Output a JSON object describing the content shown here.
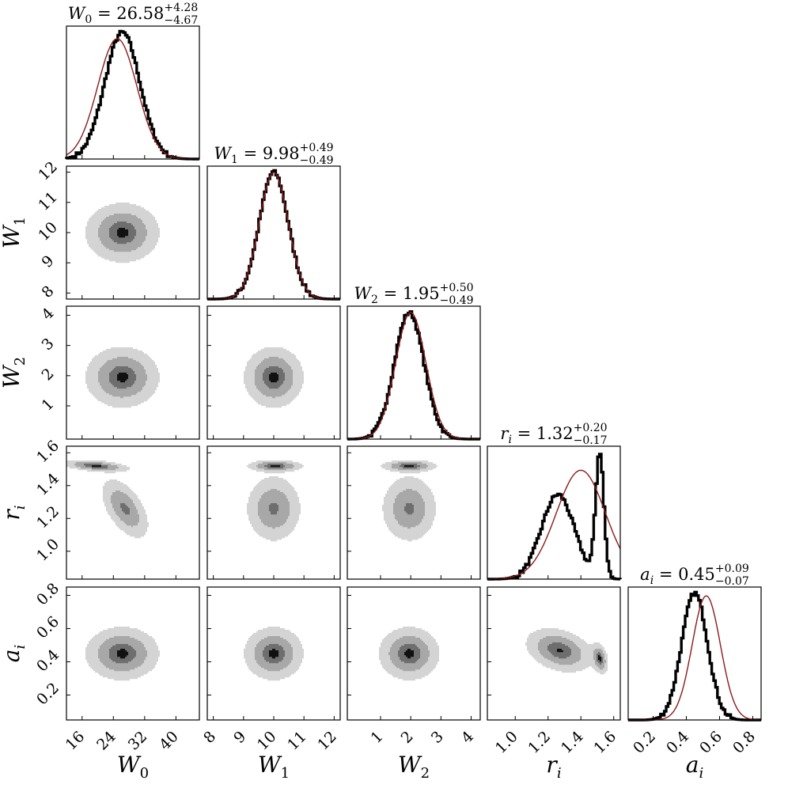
{
  "chart_data": {
    "type": "corner",
    "parameters": [
      {
        "symbol": "W",
        "sub": "0",
        "median": "26.58",
        "plus": "+4.28",
        "minus": "−4.67",
        "range": [
          12,
          46
        ],
        "ticks": [
          "16",
          "24",
          "32",
          "40"
        ]
      },
      {
        "symbol": "W",
        "sub": "1",
        "median": "9.98",
        "plus": "+0.49",
        "minus": "−0.49",
        "range": [
          7.8,
          12.2
        ],
        "ticks": [
          "8",
          "9",
          "10",
          "11",
          "12"
        ]
      },
      {
        "symbol": "W",
        "sub": "2",
        "median": "1.95",
        "plus": "+0.50",
        "minus": "−0.49",
        "range": [
          -0.1,
          4.3
        ],
        "ticks": [
          "1",
          "2",
          "3",
          "4"
        ]
      },
      {
        "symbol": "r",
        "sub": "i",
        "median": "1.32",
        "plus": "+0.20",
        "minus": "−0.17",
        "range": [
          0.83,
          1.64
        ],
        "ticks": [
          "1.0",
          "1.2",
          "1.4",
          "1.6"
        ]
      },
      {
        "symbol": "a",
        "sub": "i",
        "median": "0.45",
        "plus": "+0.09",
        "minus": "−0.07",
        "range": [
          0.05,
          0.85
        ],
        "ticks": [
          "0.2",
          "0.4",
          "0.6",
          "0.8"
        ]
      }
    ],
    "title_separator": " = ",
    "diagonal": [
      {
        "posterior": {
          "type": "gaussian",
          "mean": 26.3,
          "sd": 4.5
        },
        "prior": {
          "type": "gaussian",
          "mean": 25.0,
          "sd": 5.0,
          "rel_height": 0.95
        }
      },
      {
        "posterior": {
          "type": "gaussian",
          "mean": 10.0,
          "sd": 0.48
        },
        "prior": {
          "type": "gaussian",
          "mean": 10.0,
          "sd": 0.48,
          "rel_height": 1.0
        }
      },
      {
        "posterior": {
          "type": "gaussian",
          "mean": 1.95,
          "sd": 0.49
        },
        "prior": {
          "type": "gaussian",
          "mean": 2.0,
          "sd": 0.5,
          "rel_height": 1.0
        }
      },
      {
        "posterior": {
          "type": "mixture",
          "components": [
            [
              0.42,
              1.26,
              0.1
            ],
            [
              0.62,
              1.515,
              0.025
            ]
          ]
        },
        "prior": {
          "type": "gaussian",
          "mean": 1.4,
          "sd": 0.15,
          "rel_height": 0.86
        }
      },
      {
        "posterior": {
          "type": "gaussian",
          "mean": 0.45,
          "sd": 0.078
        },
        "prior": {
          "type": "gaussian",
          "mean": 0.52,
          "sd": 0.085,
          "rel_height": 0.98
        }
      }
    ],
    "contours": [
      {
        "row": 1,
        "col": 0,
        "blobs": [
          {
            "x": 26.3,
            "y": 10.0,
            "sx": 4.6,
            "sy": 0.48,
            "rho": 0.0,
            "w": 1
          }
        ]
      },
      {
        "row": 2,
        "col": 0,
        "blobs": [
          {
            "x": 26.3,
            "y": 1.95,
            "sx": 4.6,
            "sy": 0.49,
            "rho": 0.0,
            "w": 1
          }
        ]
      },
      {
        "row": 2,
        "col": 1,
        "blobs": [
          {
            "x": 10.0,
            "y": 1.95,
            "sx": 0.48,
            "sy": 0.49,
            "rho": 0.0,
            "w": 1
          }
        ]
      },
      {
        "row": 3,
        "col": 0,
        "blobs": [
          {
            "x": 27.0,
            "y": 1.26,
            "sx": 3.0,
            "sy": 0.09,
            "rho": -0.55,
            "w": 0.45
          },
          {
            "x": 19.5,
            "y": 1.52,
            "sx": 4.2,
            "sy": 0.018,
            "rho": -0.4,
            "w": 0.55
          }
        ]
      },
      {
        "row": 3,
        "col": 1,
        "blobs": [
          {
            "x": 10.0,
            "y": 1.26,
            "sx": 0.45,
            "sy": 0.1,
            "rho": 0.0,
            "w": 0.45
          },
          {
            "x": 10.05,
            "y": 1.52,
            "sx": 0.45,
            "sy": 0.018,
            "rho": 0.0,
            "w": 0.55
          }
        ]
      },
      {
        "row": 3,
        "col": 2,
        "blobs": [
          {
            "x": 1.95,
            "y": 1.26,
            "sx": 0.45,
            "sy": 0.1,
            "rho": 0.0,
            "w": 0.45
          },
          {
            "x": 1.95,
            "y": 1.52,
            "sx": 0.45,
            "sy": 0.018,
            "rho": 0.0,
            "w": 0.55
          }
        ]
      },
      {
        "row": 4,
        "col": 0,
        "blobs": [
          {
            "x": 26.3,
            "y": 0.45,
            "sx": 4.6,
            "sy": 0.078,
            "rho": 0.0,
            "w": 1
          }
        ]
      },
      {
        "row": 4,
        "col": 1,
        "blobs": [
          {
            "x": 10.0,
            "y": 0.45,
            "sx": 0.48,
            "sy": 0.078,
            "rho": 0.0,
            "w": 1
          }
        ]
      },
      {
        "row": 4,
        "col": 2,
        "blobs": [
          {
            "x": 1.95,
            "y": 0.45,
            "sx": 0.49,
            "sy": 0.078,
            "rho": 0.0,
            "w": 1
          }
        ]
      },
      {
        "row": 4,
        "col": 3,
        "blobs": [
          {
            "x": 1.27,
            "y": 0.47,
            "sx": 0.1,
            "sy": 0.065,
            "rho": -0.3,
            "w": 0.5
          },
          {
            "x": 1.515,
            "y": 0.42,
            "sx": 0.025,
            "sy": 0.045,
            "rho": -0.3,
            "w": 0.5
          }
        ]
      }
    ],
    "contour_levels": [
      0.12,
      0.4,
      0.75,
      0.95
    ],
    "colors": {
      "posterior": "#000000",
      "prior": "#8b1a1a",
      "fill_levels": [
        "#d4d4d4",
        "#a8a8a8",
        "#6e6e6e",
        "#111111"
      ],
      "frame": "#000000"
    },
    "grid": false
  }
}
